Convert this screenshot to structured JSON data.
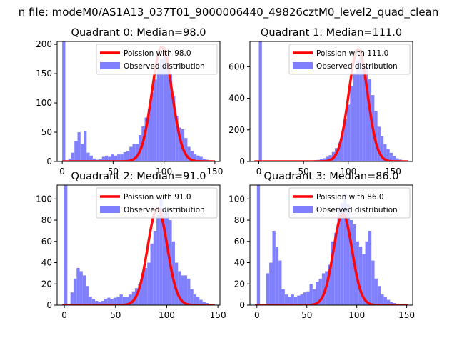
{
  "figure_title": "n file: modeM0/AS1A13_037T01_9000006440_49826cztM0_level2_quad_clean",
  "chart_data": [
    {
      "type": "bar",
      "title": "Quadrant 0: Median=98.0",
      "xlim": [
        -5,
        155
      ],
      "ylim": [
        0,
        205
      ],
      "xticks": [
        0,
        50,
        100,
        150
      ],
      "yticks": [
        0,
        50,
        100,
        150,
        200
      ],
      "bin_width": 3,
      "hist": {
        "name": "Observed distribution",
        "color": "#8080ff",
        "x": [
          0,
          3,
          6,
          9,
          12,
          15,
          18,
          21,
          24,
          27,
          30,
          33,
          36,
          39,
          42,
          45,
          48,
          51,
          54,
          57,
          60,
          63,
          66,
          69,
          72,
          75,
          78,
          81,
          84,
          87,
          90,
          93,
          96,
          99,
          102,
          105,
          108,
          111,
          114,
          117,
          120,
          123,
          126,
          129,
          132,
          135,
          138,
          141,
          144,
          147
        ],
        "values": [
          205,
          2,
          5,
          15,
          35,
          50,
          30,
          52,
          15,
          10,
          5,
          3,
          4,
          8,
          10,
          8,
          12,
          10,
          12,
          12,
          16,
          18,
          25,
          30,
          30,
          45,
          60,
          75,
          90,
          118,
          140,
          160,
          175,
          195,
          178,
          150,
          112,
          78,
          58,
          55,
          40,
          25,
          18,
          12,
          10,
          8,
          5,
          3,
          2,
          1
        ]
      },
      "poisson": {
        "name": "Poission with 98.0",
        "color": "#ff0000",
        "mu": 98.0,
        "scale": 196
      }
    },
    {
      "type": "bar",
      "title": "Quadrant 1: Median=111.0",
      "xlim": [
        -10,
        172
      ],
      "ylim": [
        0,
        760
      ],
      "xticks": [
        0,
        50,
        100,
        150
      ],
      "yticks": [
        0,
        200,
        400,
        600
      ],
      "bin_width": 3.4,
      "hist": {
        "name": "Observed distribution",
        "color": "#8080ff",
        "x": [
          0,
          3.4,
          6.8,
          10.2,
          13.6,
          17,
          20.4,
          23.8,
          27.2,
          30.6,
          34,
          37.4,
          40.8,
          44.2,
          47.6,
          51,
          54.4,
          57.8,
          61.2,
          64.6,
          68,
          71.4,
          74.8,
          78.2,
          81.6,
          85,
          88.4,
          91.8,
          95.2,
          98.6,
          102,
          105.4,
          108.8,
          112.2,
          115.6,
          119,
          122.4,
          125.8,
          129.2,
          132.6,
          136,
          139.4,
          142.8,
          146.2,
          149.6,
          153,
          156.4,
          159.8,
          163.2,
          166.6
        ],
        "values": [
          760,
          2,
          2,
          1,
          1,
          1,
          1,
          1,
          2,
          2,
          2,
          2,
          3,
          3,
          3,
          4,
          5,
          6,
          8,
          10,
          14,
          20,
          30,
          40,
          60,
          85,
          120,
          180,
          270,
          360,
          480,
          560,
          640,
          680,
          620,
          600,
          520,
          420,
          320,
          220,
          160,
          110,
          80,
          55,
          35,
          20,
          12,
          6,
          4,
          2
        ]
      },
      "poisson": {
        "name": "Poission with 111.0",
        "color": "#ff0000",
        "mu": 111.0,
        "scale": 710
      }
    },
    {
      "type": "bar",
      "title": "Quadrant 2: Median=91.0",
      "xlim": [
        -7,
        152
      ],
      "ylim": [
        0,
        113
      ],
      "xticks": [
        0,
        50,
        100,
        150
      ],
      "yticks": [
        0,
        20,
        40,
        60,
        80,
        100
      ],
      "bin_width": 3,
      "hist": {
        "name": "Observed distribution",
        "color": "#8080ff",
        "x": [
          0,
          3,
          6,
          9,
          12,
          15,
          18,
          21,
          24,
          27,
          30,
          33,
          36,
          39,
          42,
          45,
          48,
          51,
          54,
          57,
          60,
          63,
          66,
          69,
          72,
          75,
          78,
          81,
          84,
          87,
          90,
          93,
          96,
          99,
          102,
          105,
          108,
          111,
          114,
          117,
          120,
          123,
          126,
          129,
          132,
          135,
          138,
          141,
          144,
          147
        ],
        "values": [
          113,
          0,
          12,
          25,
          35,
          32,
          28,
          18,
          8,
          6,
          4,
          3,
          4,
          6,
          7,
          6,
          7,
          8,
          10,
          8,
          8,
          10,
          13,
          16,
          20,
          30,
          35,
          40,
          58,
          70,
          85,
          100,
          90,
          88,
          80,
          60,
          40,
          32,
          28,
          28,
          25,
          15,
          10,
          8,
          5,
          3,
          2,
          1,
          1,
          0
        ]
      },
      "poisson": {
        "name": "Poission with 91.0",
        "color": "#ff0000",
        "mu": 91.0,
        "scale": 91
      }
    },
    {
      "type": "bar",
      "title": "Quadrant 3: Median=86.0",
      "xlim": [
        -7,
        156
      ],
      "ylim": [
        0,
        113
      ],
      "xticks": [
        0,
        50,
        100,
        150
      ],
      "yticks": [
        0,
        20,
        40,
        60,
        80,
        100
      ],
      "bin_width": 3.1,
      "hist": {
        "name": "Observed distribution",
        "color": "#8080ff",
        "x": [
          0,
          3.1,
          6.2,
          9.3,
          12.4,
          15.5,
          18.6,
          21.7,
          24.8,
          27.9,
          31,
          34.1,
          37.2,
          40.3,
          43.4,
          46.5,
          49.6,
          52.7,
          55.8,
          58.9,
          62,
          65.1,
          68.2,
          71.3,
          74.4,
          77.5,
          80.6,
          83.7,
          86.8,
          89.9,
          93,
          96.1,
          99.2,
          102.3,
          105.4,
          108.5,
          111.6,
          114.7,
          117.8,
          120.9,
          124,
          127.1,
          130.2,
          133.3,
          136.4,
          139.5,
          142.6,
          145.7,
          148.8,
          151.9
        ],
        "values": [
          113,
          0,
          0,
          30,
          40,
          70,
          55,
          42,
          15,
          10,
          8,
          10,
          8,
          9,
          10,
          12,
          13,
          20,
          15,
          22,
          25,
          30,
          32,
          38,
          60,
          68,
          92,
          96,
          105,
          95,
          80,
          76,
          60,
          55,
          48,
          60,
          70,
          42,
          25,
          18,
          10,
          8,
          5,
          3,
          2,
          1,
          0,
          0,
          0,
          0
        ]
      },
      "poisson": {
        "name": "Poission with 86.0",
        "color": "#ff0000",
        "mu": 86.0,
        "scale": 86
      }
    }
  ]
}
